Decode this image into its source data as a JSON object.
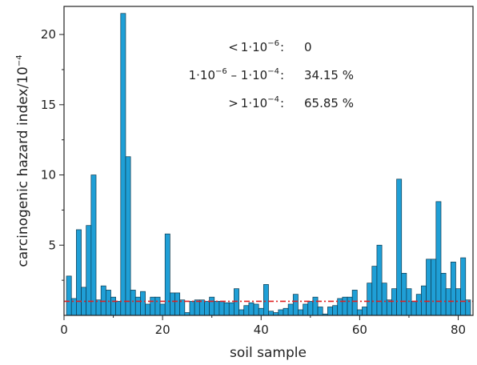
{
  "chart_data": {
    "type": "bar",
    "xlabel": "soil sample",
    "ylabel": "carcinogenic hazard index/10",
    "ylabel_exponent": "−4",
    "xlim": [
      0,
      83
    ],
    "ylim": [
      0,
      22
    ],
    "xticks": [
      0,
      20,
      40,
      60,
      80
    ],
    "yticks": [
      5,
      10,
      15,
      20
    ],
    "x": [
      1,
      2,
      3,
      4,
      5,
      6,
      7,
      8,
      9,
      10,
      11,
      12,
      13,
      14,
      15,
      16,
      17,
      18,
      19,
      20,
      21,
      22,
      23,
      24,
      25,
      26,
      27,
      28,
      29,
      30,
      31,
      32,
      33,
      34,
      35,
      36,
      37,
      38,
      39,
      40,
      41,
      42,
      43,
      44,
      45,
      46,
      47,
      48,
      49,
      50,
      51,
      52,
      53,
      54,
      55,
      56,
      57,
      58,
      59,
      60,
      61,
      62,
      63,
      64,
      65,
      66,
      67,
      68,
      69,
      70,
      71,
      72,
      73,
      74,
      75,
      76,
      77,
      78,
      79,
      80,
      81,
      82
    ],
    "values": [
      2.8,
      1.2,
      6.1,
      2.0,
      6.4,
      10.0,
      1.1,
      2.1,
      1.8,
      1.3,
      1.0,
      21.5,
      11.3,
      1.8,
      1.3,
      1.7,
      0.8,
      1.3,
      1.3,
      0.8,
      5.8,
      1.6,
      1.6,
      1.1,
      0.2,
      1.0,
      1.1,
      1.1,
      1.0,
      1.3,
      1.0,
      1.0,
      0.9,
      0.9,
      1.9,
      0.4,
      0.7,
      0.9,
      0.8,
      0.5,
      2.2,
      0.3,
      0.2,
      0.4,
      0.5,
      0.8,
      1.5,
      0.4,
      0.8,
      1.0,
      1.3,
      0.6,
      0.1,
      0.6,
      0.7,
      1.2,
      1.3,
      1.3,
      1.8,
      0.4,
      0.6,
      2.3,
      3.5,
      5.0,
      2.3,
      1.1,
      1.9,
      9.7,
      3.0,
      1.9,
      1.0,
      1.5,
      2.1,
      4.0,
      4.0,
      8.1,
      3.0,
      1.9,
      3.8,
      1.9,
      4.1,
      1.1
    ],
    "bar_color": "#1f9fd6",
    "bar_edge_color": "#0d3a4f",
    "threshold": {
      "value": 1.0,
      "style": "dash-dot",
      "color": "#e02020"
    },
    "annotations": [
      {
        "prefix": "< 1·10",
        "prefix_exp": "−6",
        "range_mid": "",
        "range_mid_exp": "",
        "colon": ":",
        "value": "0"
      },
      {
        "prefix": "1·10",
        "prefix_exp": "−6",
        "range_mid": " – 1·10",
        "range_mid_exp": "−4",
        "colon": ":",
        "value": "34.15 %"
      },
      {
        "prefix": "> 1·10",
        "prefix_exp": "−4",
        "range_mid": "",
        "range_mid_exp": "",
        "colon": ":",
        "value": "65.85 %"
      }
    ],
    "grid": false,
    "legend": "none"
  }
}
